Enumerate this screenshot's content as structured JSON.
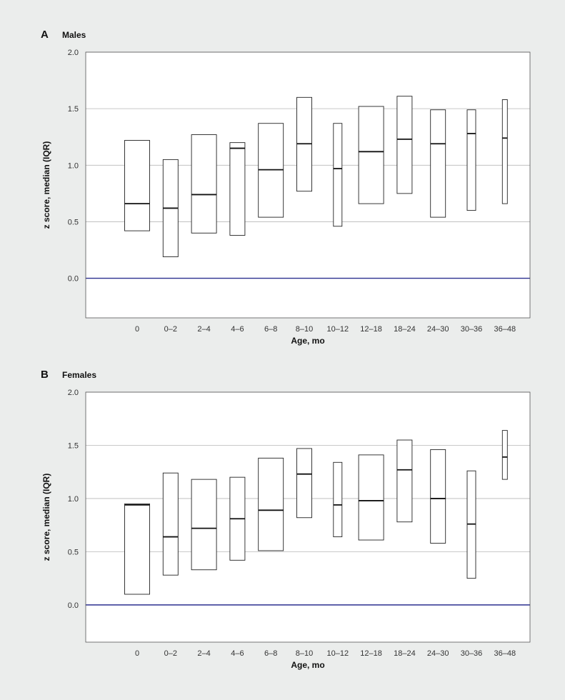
{
  "chart_data": [
    {
      "panel_letter": "A",
      "title": "Males",
      "type": "box",
      "xlabel": "Age, mo",
      "ylabel": "z score, median (IQR)",
      "ylim": [
        -0.35,
        2.0
      ],
      "yticks": [
        0.0,
        0.5,
        1.0,
        1.5,
        2.0
      ],
      "ytick_labels": [
        "0.0",
        "0.5",
        "1.0",
        "1.5",
        "2.0"
      ],
      "reference_line": 0.0,
      "reference_color": "#2b2f8f",
      "grid": "horizontal",
      "categories": [
        "0",
        "0–2",
        "2–4",
        "4–6",
        "6–8",
        "8–10",
        "10–12",
        "12–18",
        "18–24",
        "24–30",
        "30–36",
        "36–48"
      ],
      "q1": [
        0.42,
        0.19,
        0.4,
        0.38,
        0.54,
        0.77,
        0.46,
        0.66,
        0.75,
        0.54,
        0.6,
        0.66
      ],
      "median": [
        0.66,
        0.62,
        0.74,
        1.15,
        0.96,
        1.19,
        0.97,
        1.12,
        1.23,
        1.19,
        1.28,
        1.24
      ],
      "q3": [
        1.22,
        1.05,
        1.27,
        1.2,
        1.37,
        1.6,
        1.37,
        1.52,
        1.61,
        1.49,
        1.49,
        1.58
      ],
      "box_widths": [
        "wide",
        "narrow",
        "wide",
        "narrow",
        "wide",
        "narrow",
        "xnarrow",
        "wide",
        "narrow",
        "narrow",
        "xnarrow",
        "xxnarrow"
      ]
    },
    {
      "panel_letter": "B",
      "title": "Females",
      "type": "box",
      "xlabel": "Age, mo",
      "ylabel": "z score, median (IQR)",
      "ylim": [
        -0.35,
        2.0
      ],
      "yticks": [
        0.0,
        0.5,
        1.0,
        1.5,
        2.0
      ],
      "ytick_labels": [
        "0.0",
        "0.5",
        "1.0",
        "1.5",
        "2.0"
      ],
      "reference_line": 0.0,
      "reference_color": "#2b2f8f",
      "grid": "horizontal",
      "categories": [
        "0",
        "0–2",
        "2–4",
        "4–6",
        "6–8",
        "8–10",
        "10–12",
        "12–18",
        "18–24",
        "24–30",
        "30–36",
        "36–48"
      ],
      "q1": [
        0.1,
        0.28,
        0.33,
        0.42,
        0.51,
        0.82,
        0.64,
        0.61,
        0.78,
        0.58,
        0.25,
        1.18
      ],
      "median": [
        0.94,
        0.64,
        0.72,
        0.81,
        0.89,
        1.23,
        0.94,
        0.98,
        1.27,
        1.0,
        0.76,
        1.39
      ],
      "q3": [
        0.95,
        1.24,
        1.18,
        1.2,
        1.38,
        1.47,
        1.34,
        1.41,
        1.55,
        1.46,
        1.26,
        1.64
      ],
      "box_widths": [
        "wide",
        "narrow",
        "wide",
        "narrow",
        "wide",
        "narrow",
        "xnarrow",
        "wide",
        "narrow",
        "narrow",
        "xnarrow",
        "xxnarrow"
      ]
    }
  ]
}
